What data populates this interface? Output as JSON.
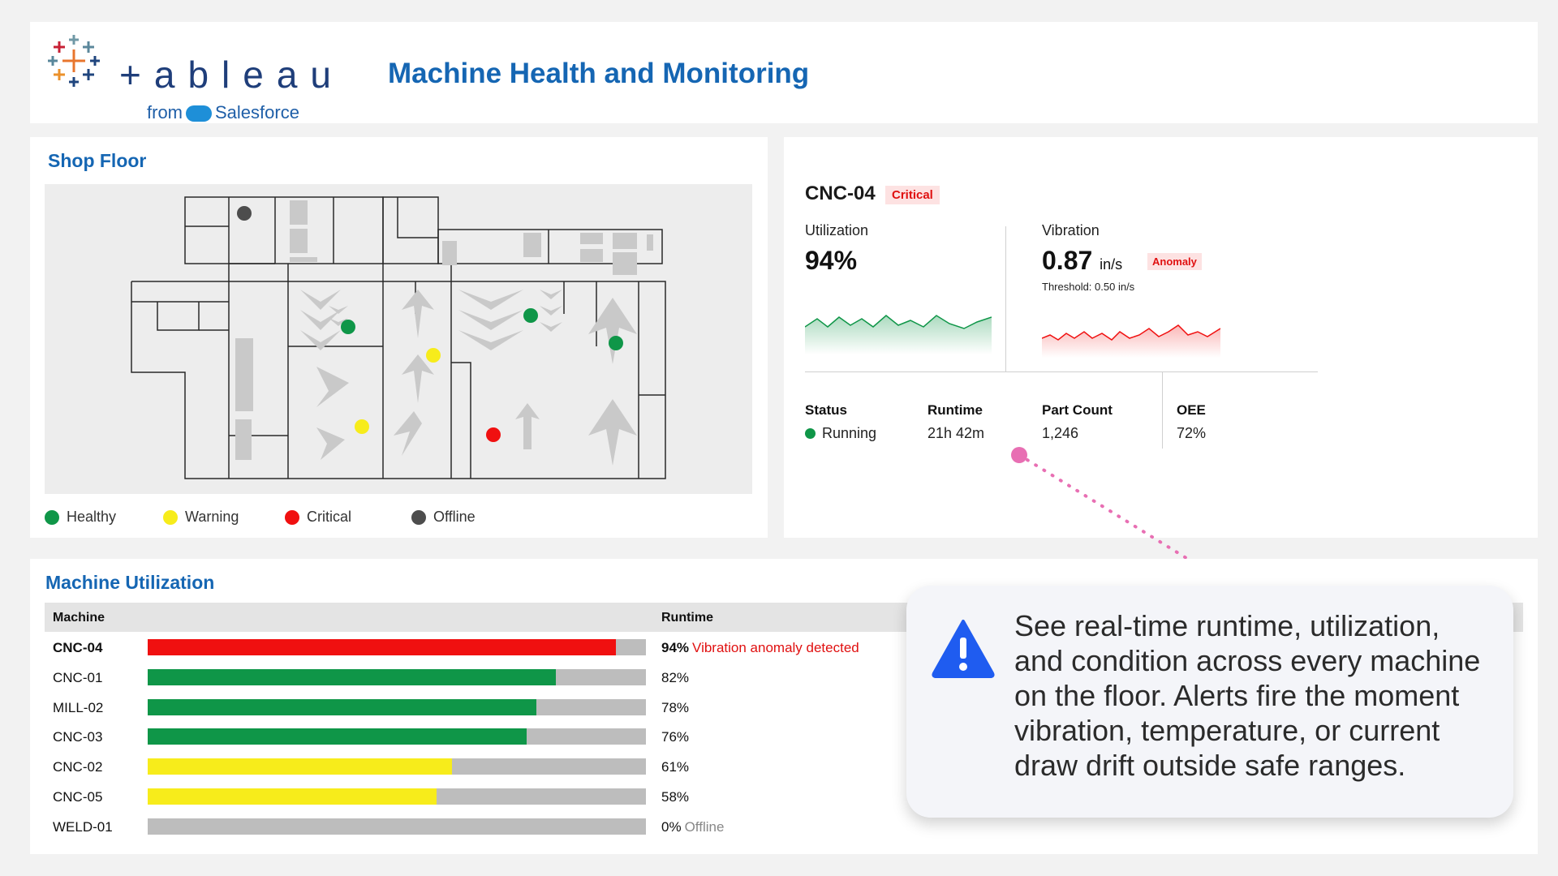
{
  "header": {
    "logo_text": "+ableau",
    "logo_sub_from": "from",
    "logo_sub_brand": "Salesforce",
    "title": "Machine Health and Monitoring"
  },
  "shop_floor": {
    "title": "Shop Floor",
    "legend": [
      {
        "label": "Healthy",
        "color": "#0f9648"
      },
      {
        "label": "Warning",
        "color": "#f7ec1b"
      },
      {
        "label": "Critical",
        "color": "#f01010"
      },
      {
        "label": "Offline",
        "color": "#4d4d4d"
      }
    ]
  },
  "machine_detail": {
    "name": "CNC-04",
    "status_badge": "Critical",
    "utilization": {
      "label": "Utilization",
      "value": "94%"
    },
    "vibration": {
      "label": "Vibration",
      "value": "0.87",
      "unit": "in/s",
      "badge": "Anomaly",
      "threshold": "Threshold: 0.50 in/s"
    },
    "stats": [
      {
        "label": "Status",
        "value": "Running"
      },
      {
        "label": "Runtime",
        "value": "21h 42m"
      },
      {
        "label": "Part Count",
        "value": "1,246"
      },
      {
        "label": "OEE",
        "value": "72%"
      }
    ]
  },
  "utilization": {
    "title": "Machine Utilization",
    "columns": [
      "Machine",
      "Runtime"
    ],
    "rows": [
      {
        "machine": "CNC-04",
        "pct": 94,
        "value": "94%",
        "note": "Vibration anomaly detected",
        "color": "#f01010",
        "note_color": "#e01010",
        "bold": true
      },
      {
        "machine": "CNC-01",
        "pct": 82,
        "value": "82%",
        "note": "",
        "color": "#0f9648"
      },
      {
        "machine": "MILL-02",
        "pct": 78,
        "value": "78%",
        "note": "",
        "color": "#0f9648"
      },
      {
        "machine": "CNC-03",
        "pct": 76,
        "value": "76%",
        "note": "",
        "color": "#0f9648"
      },
      {
        "machine": "CNC-02",
        "pct": 61,
        "value": "61%",
        "note": "",
        "color": "#f7ec1b"
      },
      {
        "machine": "CNC-05",
        "pct": 58,
        "value": "58%",
        "note": "",
        "color": "#f7ec1b"
      },
      {
        "machine": "WELD-01",
        "pct": 0,
        "value": "0%",
        "note": "Offline",
        "color": "#bdbdbd",
        "note_color": "#888888"
      }
    ]
  },
  "callout": {
    "text": "See real-time runtime, utilization, and condition across every machine on the floor. Alerts fire the moment vibration, temperature, or current draw drift outside safe ranges."
  }
}
